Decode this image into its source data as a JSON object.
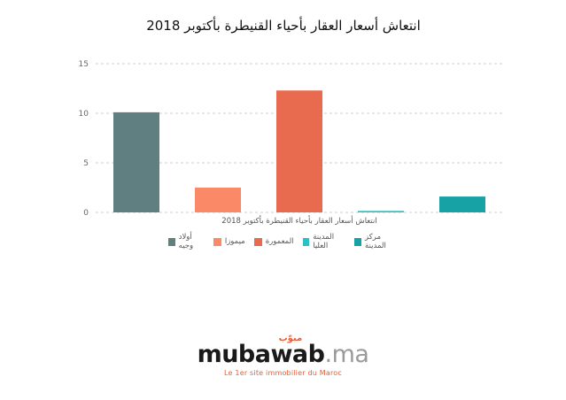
{
  "chart_data": {
    "type": "bar",
    "title": "انتعاش أسعار العقار بأحياء القنيطرة بأكتوبر 2018",
    "xlabel": "انتعاش أسعار العقار بأحياء القنيطرة بأكتوبر 2018",
    "ylabel": "",
    "ylim": [
      0,
      15
    ],
    "yticks": [
      0,
      5,
      10,
      15
    ],
    "grid": true,
    "legend_position": "bottom",
    "series": [
      {
        "name": "مركز المدينة",
        "value": 1.6,
        "color": "#17a2a5"
      },
      {
        "name": "المدينة العليا",
        "value": 0.15,
        "color": "#2bc1c4"
      },
      {
        "name": "المعمورة",
        "value": 12.3,
        "color": "#e86b4f"
      },
      {
        "name": "ميموزا",
        "value": 2.5,
        "color": "#fa8a67"
      },
      {
        "name": "أولاد وجيه",
        "value": 10.1,
        "color": "#5f7f80"
      }
    ]
  },
  "logo": {
    "text": "mubawab",
    "suffix": ".ma",
    "arabic": "مبوّب",
    "tagline": "Le 1er site immobilier du Maroc"
  }
}
